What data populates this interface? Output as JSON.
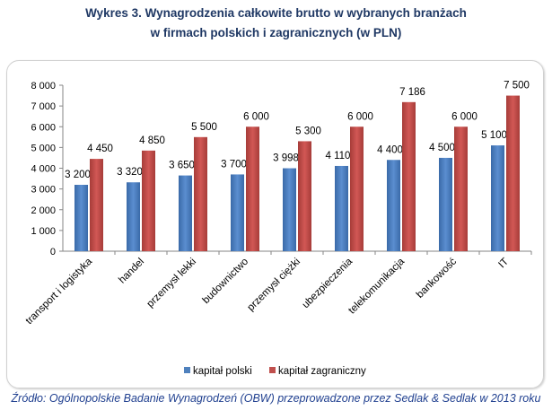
{
  "chart_data": {
    "type": "bar",
    "title_line1": "Wykres 3. Wynagrodzenia całkowite brutto w wybranych branżach",
    "title_line2": "w firmach polskich i zagranicznych (w PLN)",
    "categories": [
      "transport i logistyka",
      "handel",
      "przemysł lekki",
      "budownictwo",
      "przemysł ciężki",
      "ubezpieczenia",
      "telekomunikacja",
      "bankowość",
      "IT"
    ],
    "series": [
      {
        "name": "kapitał polski",
        "color": "#4f81bd",
        "values": [
          3200,
          3320,
          3650,
          3700,
          3998,
          4110,
          4400,
          4500,
          5100
        ],
        "labels": [
          "3 200",
          "3 320",
          "3 650",
          "3 700",
          "3 998",
          "4 110",
          "4 400",
          "4 500",
          "5 100"
        ]
      },
      {
        "name": "kapitał zagraniczny",
        "color": "#c0504d",
        "values": [
          4450,
          4850,
          5500,
          6000,
          5300,
          6000,
          7186,
          6000,
          7500
        ],
        "labels": [
          "4 450",
          "4 850",
          "5 500",
          "6 000",
          "5 300",
          "6 000",
          "7 186",
          "6 000",
          "7 500"
        ]
      }
    ],
    "yticks": [
      0,
      1000,
      2000,
      3000,
      4000,
      5000,
      6000,
      7000,
      8000
    ],
    "ytick_labels": [
      "0",
      "1 000",
      "2 000",
      "3 000",
      "4 000",
      "5 000",
      "6 000",
      "7 000",
      "8 000"
    ],
    "ylim": [
      0,
      8000
    ],
    "legend_position": "bottom"
  },
  "source": "Źródło: Ogólnopolskie Badanie Wynagrodzeń (OBW) przeprowadzone przez Sedlak & Sedlak w 2013 roku"
}
